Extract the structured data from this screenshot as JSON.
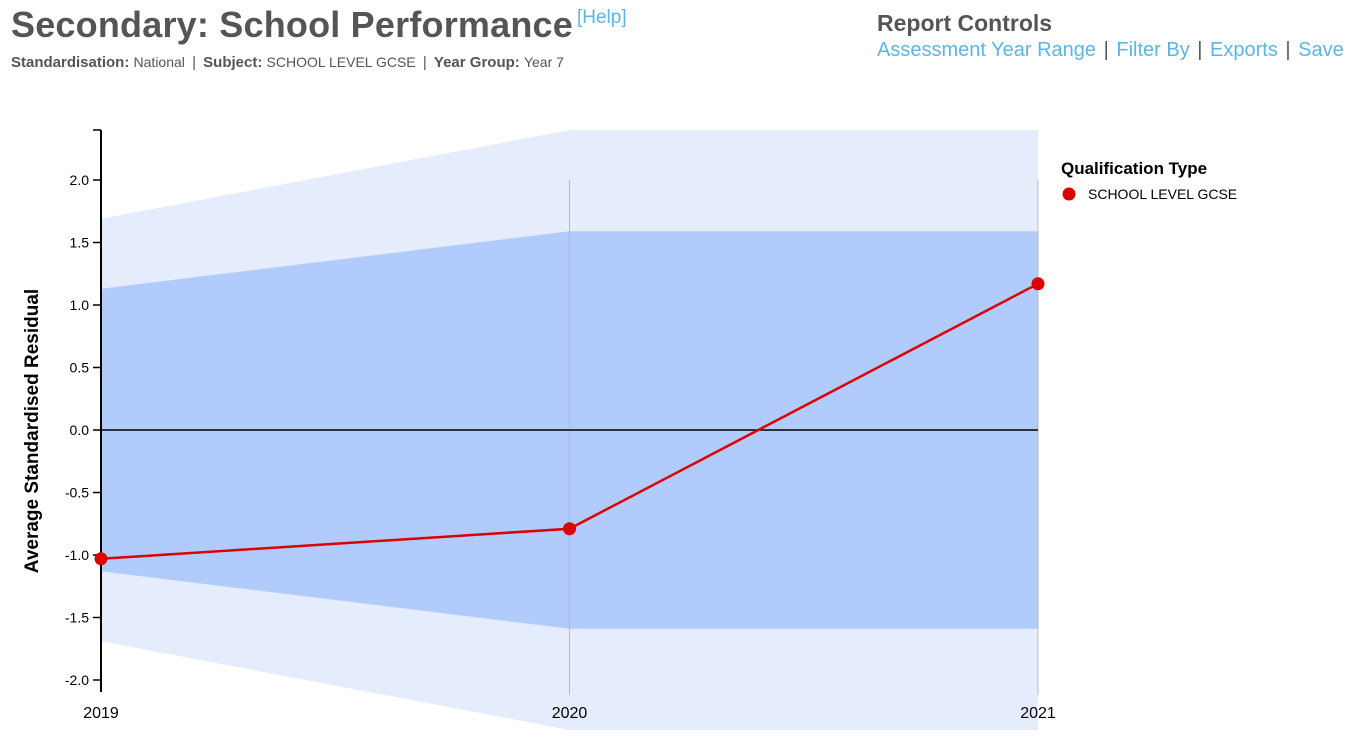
{
  "header": {
    "title": "Secondary: School Performance",
    "help": "[Help]",
    "standardisation_label": "Standardisation:",
    "standardisation_value": "National",
    "subject_label": "Subject:",
    "subject_value": "SCHOOL LEVEL GCSE",
    "year_group_label": "Year Group:",
    "year_group_value": "Year 7",
    "separator": "|"
  },
  "controls": {
    "title": "Report Controls",
    "links": [
      "Assessment Year Range",
      "Filter By",
      "Exports",
      "Save"
    ],
    "separator": "|"
  },
  "colors": {
    "outer_band": "#e5edfd",
    "inner_band": "#b1cbfd",
    "series": "#dd0000",
    "link": "#5bb6e6"
  },
  "chart_data": {
    "type": "line",
    "title": "",
    "xlabel": "",
    "ylabel": "Average Standardised Residual",
    "x": [
      "2019",
      "2020",
      "2021"
    ],
    "ylim": [
      -2.0,
      2.0
    ],
    "yticks": [
      "2.0",
      "1.5",
      "1.0",
      "0.5",
      "0.0",
      "-0.5",
      "-1.0",
      "-1.5",
      "-2.0"
    ],
    "grid": false,
    "reference_line": 0.0,
    "series": [
      {
        "name": "SCHOOL LEVEL GCSE",
        "values": [
          -1.03,
          -0.79,
          1.17
        ]
      }
    ],
    "bands": {
      "inner_upper": [
        1.13,
        1.59,
        1.59
      ],
      "inner_lower": [
        -1.13,
        -1.59,
        -1.59
      ],
      "outer_upper": [
        1.69,
        2.4,
        2.4
      ],
      "outer_lower": [
        -1.69,
        -2.4,
        -2.4
      ]
    },
    "legend": {
      "title": "Qualification Type",
      "position": "right"
    }
  }
}
